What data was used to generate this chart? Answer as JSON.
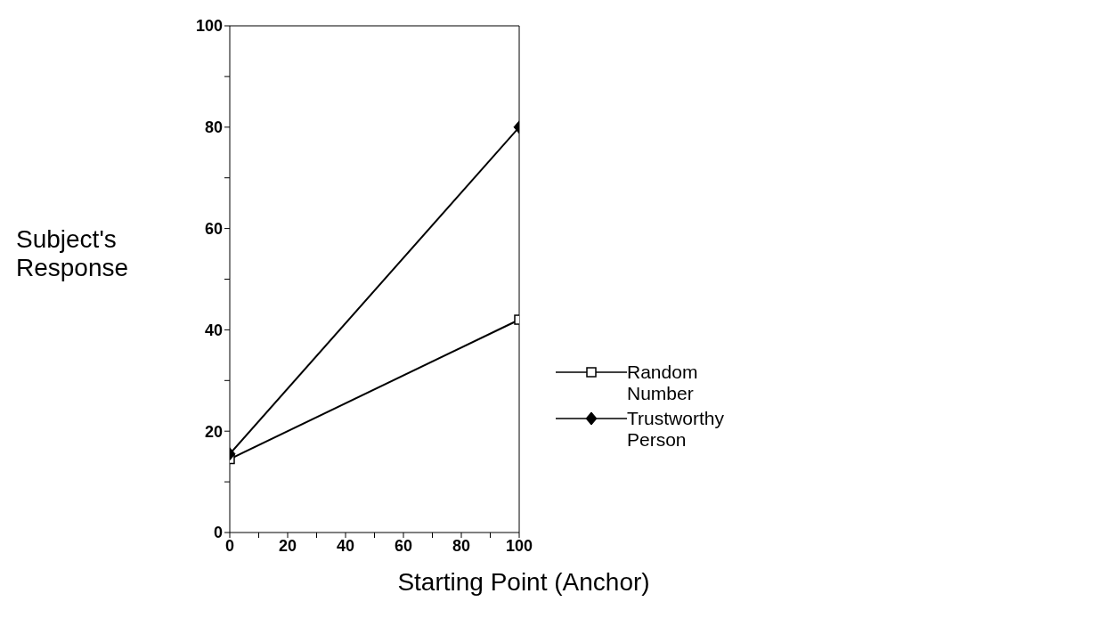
{
  "chart_data": {
    "type": "line",
    "xlabel": "Starting Point (Anchor)",
    "ylabel": "Subject's Response",
    "x": [
      0,
      100
    ],
    "series": [
      {
        "name": "Random Number",
        "color": "#000000",
        "values": [
          14.5,
          42
        ],
        "marker": "square"
      },
      {
        "name": "Trustworthy Person",
        "color": "#000000",
        "values": [
          15.5,
          80
        ],
        "marker": "diamond"
      }
    ],
    "xlim": [
      0,
      100
    ],
    "ylim": [
      0,
      100
    ],
    "xticks": [
      0,
      {
        "value": 10,
        "label": null
      },
      20,
      {
        "value": 30,
        "label": null
      },
      40,
      {
        "value": 50,
        "label": null
      },
      60,
      {
        "value": 70,
        "label": null
      },
      80,
      {
        "value": 90,
        "label": null
      },
      100
    ],
    "yticks": [
      0,
      {
        "value": 10,
        "label": null
      },
      20,
      {
        "value": 30,
        "label": null
      },
      40,
      {
        "value": 50,
        "label": null
      },
      60,
      {
        "value": 70,
        "label": null
      },
      80,
      {
        "value": 90,
        "label": null
      },
      100
    ],
    "grid": false,
    "legend": "right",
    "line_style": "solid"
  }
}
